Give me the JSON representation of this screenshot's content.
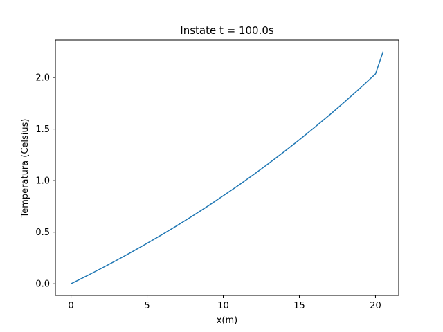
{
  "chart_data": {
    "type": "line",
    "title": "Instate t = 100.0s",
    "xlabel": "x(m)",
    "ylabel": "Temperatura (Celsius)",
    "xlim": [
      -1.025,
      21.525
    ],
    "ylim": [
      -0.1125,
      2.3625
    ],
    "xticks": [
      0,
      5,
      10,
      15,
      20
    ],
    "xtick_labels": [
      "0",
      "5",
      "10",
      "15",
      "20"
    ],
    "yticks": [
      0.0,
      0.5,
      1.0,
      1.5,
      2.0
    ],
    "ytick_labels": [
      "0.0",
      "0.5",
      "1.0",
      "1.5",
      "2.0"
    ],
    "grid": false,
    "series": [
      {
        "color": "#1f77b4",
        "x": [
          0,
          1,
          2,
          3,
          4,
          5,
          6,
          7,
          8,
          9,
          10,
          11,
          12,
          13,
          14,
          15,
          16,
          17,
          18,
          19,
          20,
          20.5
        ],
        "y": [
          0.0,
          0.074,
          0.15,
          0.228,
          0.309,
          0.392,
          0.478,
          0.567,
          0.659,
          0.754,
          0.853,
          0.954,
          1.059,
          1.168,
          1.28,
          1.396,
          1.516,
          1.639,
          1.767,
          1.898,
          2.034,
          2.25
        ]
      }
    ]
  }
}
